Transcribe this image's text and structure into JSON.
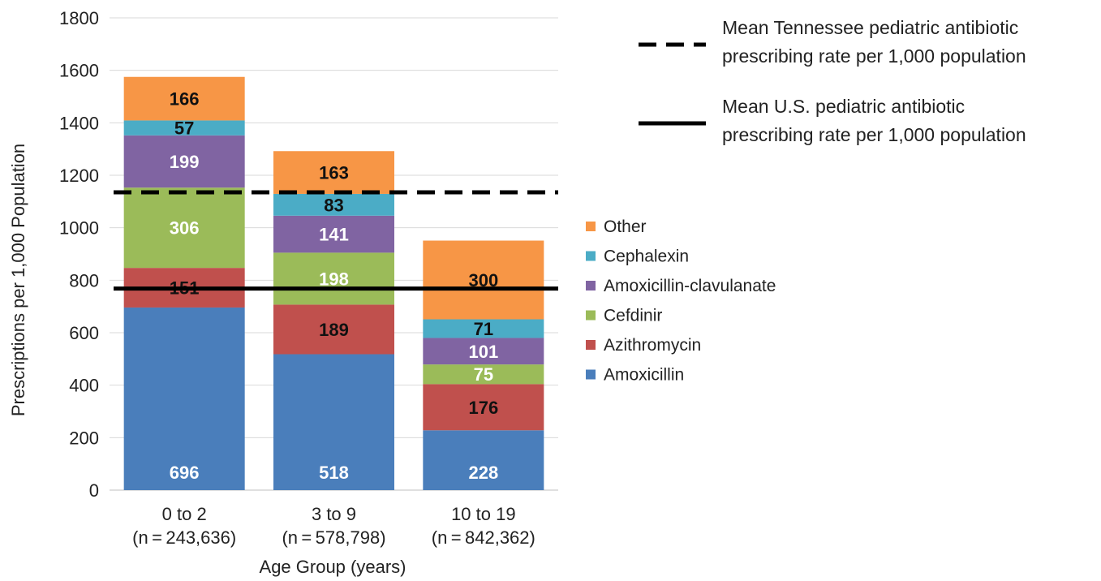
{
  "chart_data": {
    "type": "bar",
    "stacked": true,
    "title": "",
    "xlabel": "Age Group (years)",
    "ylabel": "Prescriptions per 1,000 Population",
    "ylim": [
      0,
      1800
    ],
    "yticks": [
      "0",
      "200",
      "400",
      "600",
      "800",
      "1000",
      "1200",
      "1400",
      "1600",
      "1800"
    ],
    "grid": true,
    "categories": [
      "0 to 2",
      "3 to 9",
      "10 to 19"
    ],
    "category_n": [
      "(n = 243,636)",
      "(n = 578,798)",
      "(n = 842,362)"
    ],
    "legend_position": "right",
    "series": [
      {
        "name": "Amoxicillin",
        "color": "#4a7ebb",
        "label_color": "#ffffff",
        "values": [
          696,
          518,
          228
        ]
      },
      {
        "name": "Azithromycin",
        "color": "#c0504d",
        "label_color": "#111111",
        "values": [
          151,
          189,
          176
        ]
      },
      {
        "name": "Cefdinir",
        "color": "#9bbb59",
        "label_color": "#ffffff",
        "values": [
          306,
          198,
          75
        ]
      },
      {
        "name": "Amoxicillin-clavulanate",
        "color": "#8064a2",
        "label_color": "#ffffff",
        "values": [
          199,
          141,
          101
        ]
      },
      {
        "name": "Cephalexin",
        "color": "#4bacc6",
        "label_color": "#111111",
        "values": [
          57,
          83,
          71
        ]
      },
      {
        "name": "Other",
        "color": "#f79646",
        "label_color": "#111111",
        "values": [
          166,
          163,
          300
        ]
      }
    ],
    "reference_lines": [
      {
        "name": "Mean Tennessee pediatric antibiotic prescribing rate per 1,000 population",
        "line1": "Mean Tennessee pediatric antibiotic",
        "line2": "prescribing rate per 1,000 population",
        "value": 1135,
        "style": "dashed",
        "color": "#000000"
      },
      {
        "name": "Mean U.S. pediatric antibiotic prescribing rate per 1,000 population",
        "line1": "Mean U.S. pediatric antibiotic",
        "line2": "prescribing rate per 1,000 population",
        "value": 768,
        "style": "solid",
        "color": "#000000"
      }
    ]
  }
}
